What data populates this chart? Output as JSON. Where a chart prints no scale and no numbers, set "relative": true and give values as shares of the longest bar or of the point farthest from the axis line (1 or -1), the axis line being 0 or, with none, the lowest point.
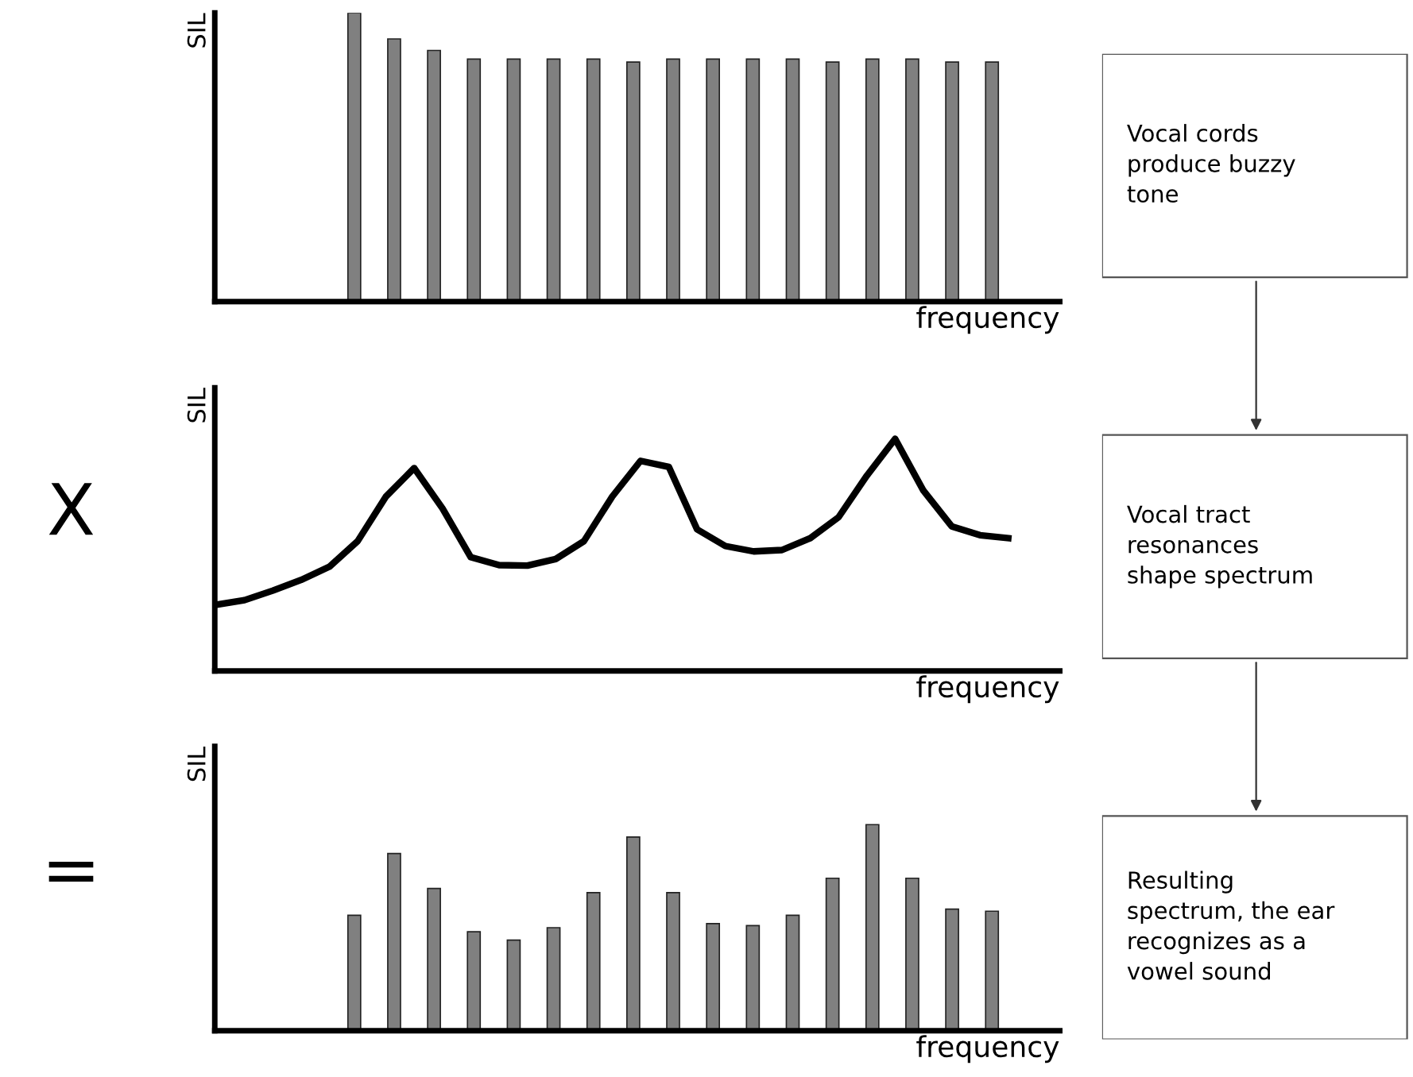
{
  "chart_data": [
    {
      "type": "bar",
      "relative": true,
      "xlabel": "frequency",
      "ylabel": "SIL",
      "tick_labels": false,
      "categories": [
        null,
        null,
        null,
        null,
        null,
        null,
        null,
        null,
        null,
        null,
        null,
        null,
        null,
        null,
        null,
        null,
        null
      ],
      "series": [
        {
          "color": "#808080",
          "values": [
            1,
            0.91,
            0.87,
            0.84,
            0.84,
            0.84,
            0.84,
            0.83,
            0.84,
            0.84,
            0.84,
            0.84,
            0.83,
            0.84,
            0.84,
            0.83,
            0.83
          ]
        }
      ]
    },
    {
      "type": "line",
      "relative": true,
      "xlabel": "frequency",
      "ylabel": "SIL",
      "tick_labels": false,
      "marker": "none",
      "line_style": "solid",
      "annotations": [
        "X"
      ],
      "categories": [
        null,
        null,
        null,
        null,
        null,
        null,
        null,
        null,
        null,
        null,
        null,
        null,
        null,
        null,
        null,
        null,
        null,
        null,
        null,
        null,
        null,
        null,
        null,
        null,
        null,
        null,
        null,
        null,
        null
      ],
      "series": [
        {
          "color": "#000000",
          "values": [
            0.285,
            0.305,
            0.346,
            0.392,
            0.449,
            0.559,
            0.751,
            0.874,
            0.7,
            0.49,
            0.456,
            0.454,
            0.482,
            0.559,
            0.751,
            0.905,
            0.879,
            0.61,
            0.538,
            0.515,
            0.521,
            0.572,
            0.662,
            0.841,
            1.0,
            0.777,
            0.623,
            0.585,
            0.572
          ]
        }
      ]
    },
    {
      "type": "bar",
      "relative": true,
      "xlabel": "frequency",
      "ylabel": "SIL",
      "tick_labels": false,
      "annotations": [
        "="
      ],
      "categories": [
        null,
        null,
        null,
        null,
        null,
        null,
        null,
        null,
        null,
        null,
        null,
        null,
        null,
        null,
        null,
        null,
        null
      ],
      "series": [
        {
          "color": "#808080",
          "values": [
            0.56,
            0.86,
            0.69,
            0.48,
            0.44,
            0.5,
            0.67,
            0.94,
            0.67,
            0.52,
            0.51,
            0.56,
            0.74,
            1,
            0.74,
            0.59,
            0.58
          ]
        }
      ]
    },
    {
      "type": "other",
      "annotations": [
        "Vocal cords\nproduce buzzy\ntone",
        "Vocal tract\nresonances\nshape spectrum",
        "Resulting\nspectrum, the ear\nrecognizes as a\nvowel sound"
      ]
    }
  ]
}
